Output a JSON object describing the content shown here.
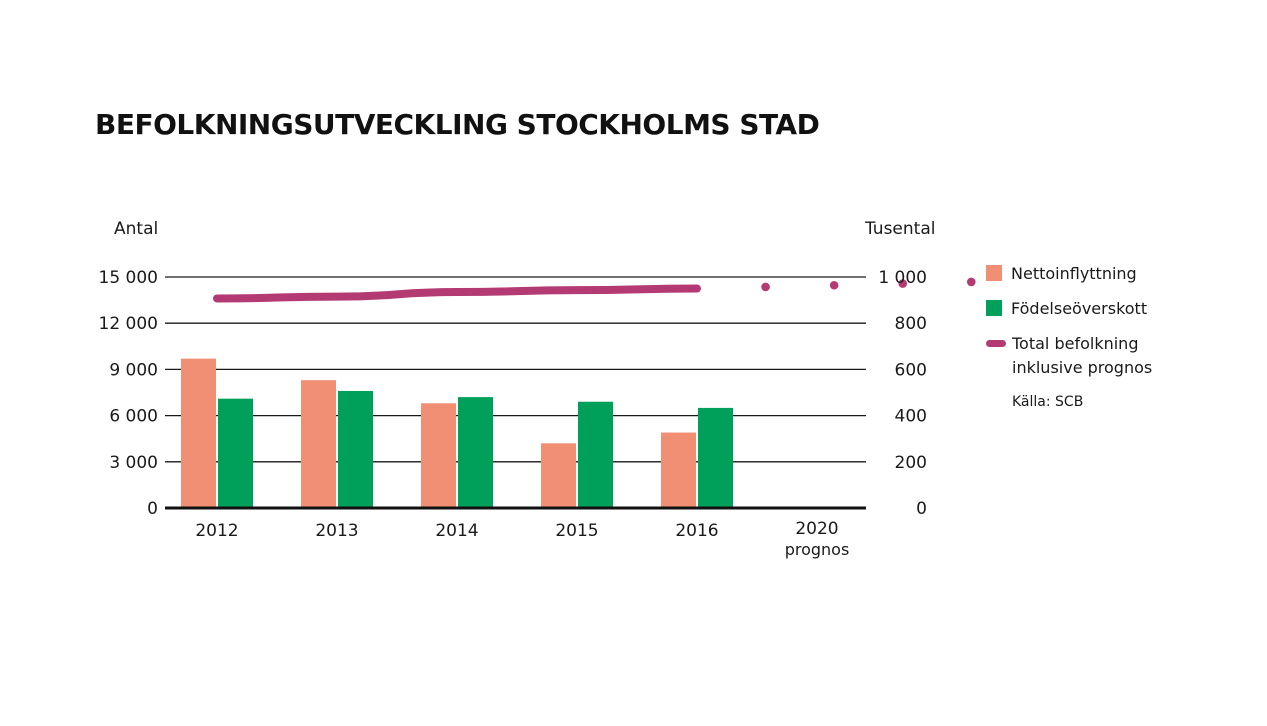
{
  "title": "BEFOLKNINGSUTVECKLING STOCKHOLMS STAD",
  "source": "Källa: SCB",
  "colors": {
    "nettoinflyttning": "#f08f74",
    "fodelseoverskott": "#00a05a",
    "total": "#b33a73"
  },
  "legend": [
    {
      "label": "Nettoinflyttning",
      "kind": "box",
      "color": "#f08f74"
    },
    {
      "label": "Födelseöverskott",
      "kind": "box",
      "color": "#00a05a"
    },
    {
      "label": "Total befolkning inklusive prognos",
      "kind": "line",
      "color": "#b33a73"
    }
  ],
  "chart_data": {
    "type": "bar",
    "categories": [
      {
        "year": "2012",
        "sub": ""
      },
      {
        "year": "2013",
        "sub": ""
      },
      {
        "year": "2014",
        "sub": ""
      },
      {
        "year": "2015",
        "sub": ""
      },
      {
        "year": "2016",
        "sub": ""
      },
      {
        "year": "2020",
        "sub": "prognos"
      }
    ],
    "left_axis": {
      "label": "Antal",
      "ylim": [
        0,
        15000
      ],
      "ticks": [
        0,
        3000,
        6000,
        9000,
        12000,
        15000
      ],
      "tick_labels": [
        "0",
        "3 000",
        "6 000",
        "9 000",
        "12 000",
        "15 000"
      ]
    },
    "right_axis": {
      "label": "Tusental",
      "ylim": [
        0,
        1000
      ],
      "ticks": [
        0,
        200,
        400,
        600,
        800,
        1000
      ],
      "tick_labels": [
        "0",
        "200",
        "400",
        "600",
        "800",
        "1 000"
      ]
    },
    "series": [
      {
        "name": "Nettoinflyttning",
        "axis": "left",
        "values": [
          9700,
          8300,
          6800,
          4200,
          4900,
          null
        ]
      },
      {
        "name": "Födelseöverskott",
        "axis": "left",
        "values": [
          7100,
          7600,
          7200,
          6900,
          6500,
          null
        ]
      }
    ],
    "line_series": {
      "name": "Total befolkning inklusive prognos",
      "axis": "right",
      "points": [
        {
          "x": 2012,
          "y": 907
        },
        {
          "x": 2013,
          "y": 915
        },
        {
          "x": 2014,
          "y": 935
        },
        {
          "x": 2015,
          "y": 943
        },
        {
          "x": 2016,
          "y": 950
        }
      ],
      "forecast_points": [
        {
          "x": 2016,
          "y": 950
        },
        {
          "x": 2020,
          "y": 1000
        }
      ]
    },
    "grid": true,
    "legend_position": "right"
  }
}
